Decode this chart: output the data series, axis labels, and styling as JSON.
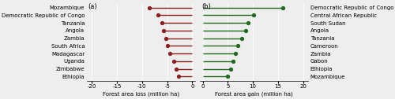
{
  "loss_countries": [
    "Mozambique",
    "Democratic Republic of Congo",
    "Tanzania",
    "Angola",
    "Zambia",
    "South Africa",
    "Madagascar",
    "Uganda",
    "Zimbabwe",
    "Ethiopia"
  ],
  "loss_values": [
    -8.5,
    -6.8,
    -6.0,
    -5.7,
    -5.3,
    -4.9,
    -4.4,
    -3.7,
    -3.2,
    -2.8
  ],
  "gain_countries": [
    "Democratic Republic of Congo",
    "Central African Republic",
    "South Sudan",
    "Angola",
    "Tanzania",
    "Cameroon",
    "Zambia",
    "Gabon",
    "Ethiopia",
    "Mozambique"
  ],
  "gain_values": [
    16.0,
    10.2,
    9.1,
    8.6,
    7.8,
    7.0,
    6.5,
    6.0,
    5.5,
    5.0
  ],
  "loss_color": "#8B2020",
  "gain_color": "#1F6B1F",
  "background_color": "#eeeeee",
  "loss_xlim": [
    -21,
    0.5
  ],
  "gain_xlim": [
    -0.5,
    21
  ],
  "loss_xticks": [
    -20,
    -15,
    -10,
    -5,
    0
  ],
  "loss_xticklabels": [
    "-20",
    "-15",
    "-10",
    "-5",
    "0"
  ],
  "gain_xticks": [
    0,
    5,
    10,
    15,
    20
  ],
  "gain_xticklabels": [
    "0",
    "5",
    "10",
    "15",
    "20"
  ],
  "loss_xlabel": "Forest area loss (million ha)",
  "gain_xlabel": "Forest area gain (million ha)",
  "label_a": "(a)",
  "label_b": "(b)",
  "font_size": 5.0,
  "label_fontsize": 6.0,
  "marker_size": 2.8,
  "line_width": 1.0
}
